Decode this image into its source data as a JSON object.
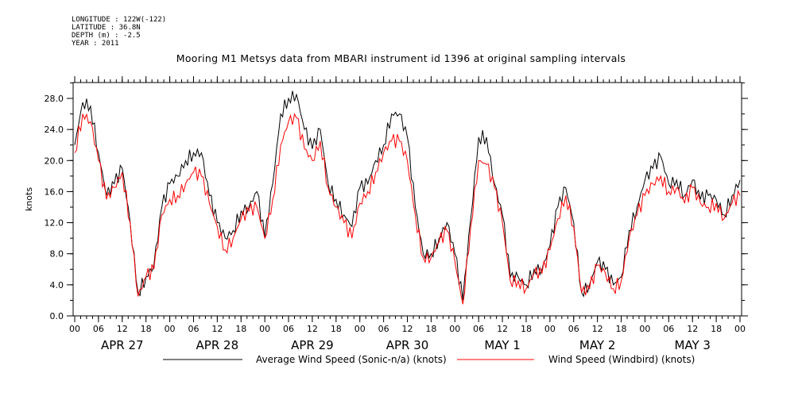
{
  "meta": {
    "longitude": "LONGITUDE : 122W(-122)",
    "latitude": "LATITUDE : 36.8N",
    "depth": "DEPTH (m) : -2.5",
    "year": "YEAR : 2011"
  },
  "chart_data": {
    "type": "line",
    "title": "Mooring M1 Metsys data from MBARI instrument id 1396 at original sampling intervals",
    "ylabel": "knots",
    "xlabel": "",
    "ylim": [
      0,
      28
    ],
    "xlim_hours": [
      0,
      168
    ],
    "grid": false,
    "legend_position": "bottom",
    "y_ticks": [
      "0.0",
      "4.0",
      "8.0",
      "12.0",
      "16.0",
      "20.0",
      "24.0",
      "28.0"
    ],
    "hour_ticks": [
      "00",
      "06",
      "12",
      "18",
      "00",
      "06",
      "12",
      "18",
      "00",
      "06",
      "12",
      "18",
      "00",
      "06",
      "12",
      "18",
      "00",
      "06",
      "12",
      "18",
      "00",
      "06",
      "12",
      "18",
      "00",
      "06",
      "12",
      "18",
      "00"
    ],
    "day_labels": [
      "APR 27",
      "APR 28",
      "APR 29",
      "APR 30",
      "MAY  1",
      "MAY  2",
      "MAY  3"
    ],
    "series": [
      {
        "name": "Average Wind Speed (Sonic-n/a) (knots)",
        "color": "#000000",
        "x": [
          0,
          2,
          4,
          6,
          8,
          10,
          12,
          14,
          16,
          18,
          20,
          22,
          24,
          26,
          28,
          30,
          32,
          34,
          36,
          38,
          40,
          42,
          44,
          46,
          48,
          50,
          52,
          54,
          56,
          58,
          60,
          62,
          64,
          66,
          68,
          70,
          72,
          74,
          76,
          78,
          80,
          82,
          84,
          86,
          88,
          90,
          92,
          94,
          96,
          98,
          100,
          102,
          104,
          106,
          108,
          110,
          112,
          114,
          116,
          118,
          120,
          122,
          124,
          126,
          128,
          130,
          132,
          134,
          136,
          138,
          140,
          142,
          144,
          146,
          148,
          150,
          152,
          154,
          156,
          158,
          160,
          162,
          164,
          166,
          168
        ],
        "y": [
          22,
          27.5,
          27,
          21,
          15.5,
          17,
          19,
          12,
          3,
          5,
          6.5,
          14,
          17,
          18,
          20,
          21,
          21,
          15.5,
          12,
          10,
          11,
          13.5,
          14,
          16,
          10,
          17,
          26,
          28,
          28.5,
          24,
          21.5,
          24,
          17,
          15,
          13,
          11.5,
          16.5,
          17,
          20,
          22,
          26,
          26,
          23,
          14,
          8,
          8,
          10,
          12,
          8,
          2,
          12.5,
          23,
          23,
          17,
          13,
          5,
          5,
          4,
          6,
          6,
          9,
          14,
          16.5,
          12,
          3,
          4,
          7,
          6,
          4,
          5,
          11,
          14,
          17.5,
          19,
          20.5,
          17,
          17.5,
          15.5,
          17.5,
          15,
          15.5,
          15,
          13,
          15.5,
          17.5
        ]
      },
      {
        "name": "Wind Speed (Windbird) (knots)",
        "color": "#ff0000",
        "x": [
          0,
          2,
          4,
          6,
          8,
          10,
          12,
          14,
          16,
          18,
          20,
          22,
          24,
          26,
          28,
          30,
          32,
          34,
          36,
          38,
          40,
          42,
          44,
          46,
          48,
          50,
          52,
          54,
          56,
          58,
          60,
          62,
          64,
          66,
          68,
          70,
          72,
          74,
          76,
          78,
          80,
          82,
          84,
          86,
          88,
          90,
          92,
          94,
          96,
          98,
          100,
          102,
          104,
          106,
          108,
          110,
          112,
          114,
          116,
          118,
          120,
          122,
          124,
          126,
          128,
          130,
          132,
          134,
          136,
          138,
          140,
          142,
          144,
          146,
          148,
          150,
          152,
          154,
          156,
          158,
          160,
          162,
          164,
          166,
          168
        ],
        "y": [
          21,
          26,
          25,
          20,
          15,
          16.5,
          18.5,
          12,
          2.5,
          5,
          6,
          13,
          15,
          15.5,
          17,
          18.5,
          18,
          14.5,
          11.5,
          8.5,
          10,
          12.5,
          13.5,
          14,
          10,
          15,
          22,
          25,
          25.5,
          21.5,
          20,
          22.5,
          16.5,
          14,
          12,
          10,
          14.5,
          16,
          18.5,
          21,
          22.5,
          22.5,
          20,
          13,
          7.5,
          7.5,
          9.5,
          11,
          7,
          1.5,
          11.5,
          20,
          19.5,
          16.5,
          12,
          4.5,
          4.5,
          3.5,
          5.5,
          5.5,
          8.5,
          12.5,
          15.5,
          11.5,
          3,
          3.5,
          6.5,
          5.5,
          3.5,
          4.5,
          10,
          13,
          15.5,
          17,
          18,
          16,
          16.5,
          14.5,
          16.5,
          14.5,
          14,
          14.5,
          12.5,
          14.5,
          15.5
        ]
      }
    ]
  }
}
